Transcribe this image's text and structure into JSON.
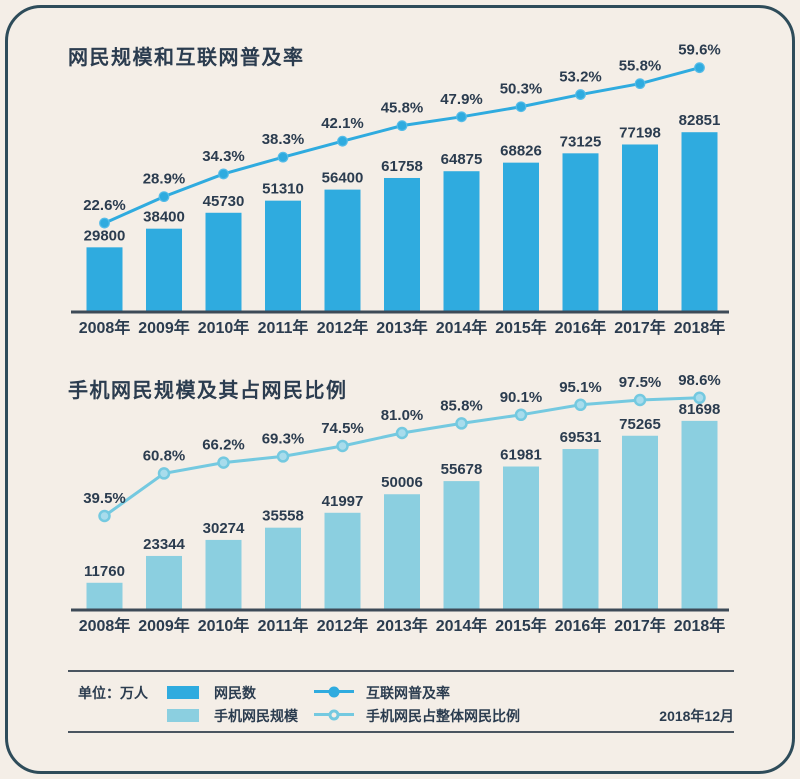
{
  "colors": {
    "background": "#f4eee7",
    "card_border": "#2e4c5a",
    "text": "#2b3c4f",
    "axis": "#3d4a57",
    "separator": "#4a5560",
    "bar_blue": "#2fabdf",
    "bar_light_blue": "#8bcfe0",
    "line_blue": "#2fabdf",
    "line_light_blue": "#74c9e0",
    "dot_light_fill": "#a8dcec"
  },
  "chart_data": [
    {
      "type": "bar",
      "title": "网民规模和互联网普及率",
      "categories": [
        "2008年",
        "2009年",
        "2010年",
        "2011年",
        "2012年",
        "2013年",
        "2014年",
        "2015年",
        "2016年",
        "2017年",
        "2018年"
      ],
      "unit": "万人",
      "series": [
        {
          "name": "网民数",
          "type": "bar",
          "color": "#2fabdf",
          "values": [
            29800,
            38400,
            45730,
            51310,
            56400,
            61758,
            64875,
            68826,
            73125,
            77198,
            82851
          ]
        },
        {
          "name": "互联网普及率",
          "type": "line",
          "unit": "%",
          "color": "#2fabdf",
          "marker": "filled",
          "values": [
            22.6,
            28.9,
            34.3,
            38.3,
            42.1,
            45.8,
            47.9,
            50.3,
            53.2,
            55.8,
            59.6
          ]
        }
      ]
    },
    {
      "type": "bar",
      "title": "手机网民规模及其占网民比例",
      "categories": [
        "2008年",
        "2009年",
        "2010年",
        "2011年",
        "2012年",
        "2013年",
        "2014年",
        "2015年",
        "2016年",
        "2017年",
        "2018年"
      ],
      "unit": "万人",
      "series": [
        {
          "name": "手机网民规模",
          "type": "bar",
          "color": "#8bcfe0",
          "values": [
            11760,
            23344,
            30274,
            35558,
            41997,
            50006,
            55678,
            61981,
            69531,
            75265,
            81698
          ]
        },
        {
          "name": "手机网民占整体网民比例",
          "type": "line",
          "unit": "%",
          "color": "#74c9e0",
          "marker": "hollow",
          "marker_fill": "#a8dcec",
          "values": [
            39.5,
            60.8,
            66.2,
            69.3,
            74.5,
            81.0,
            85.8,
            90.1,
            95.1,
            97.5,
            98.6
          ]
        }
      ]
    }
  ],
  "legend": {
    "unit_label": "单位：万人",
    "bar_items": [
      {
        "label": "网民数",
        "color": "#2fabdf"
      },
      {
        "label": "手机网民规模",
        "color": "#8bcfe0"
      }
    ],
    "line_items": [
      {
        "label": "互联网普及率",
        "color": "#2fabdf",
        "marker": "filled"
      },
      {
        "label": "手机网民占整体网民比例",
        "color": "#74c9e0",
        "marker": "hollow"
      }
    ],
    "date_label": "2018年12月"
  }
}
